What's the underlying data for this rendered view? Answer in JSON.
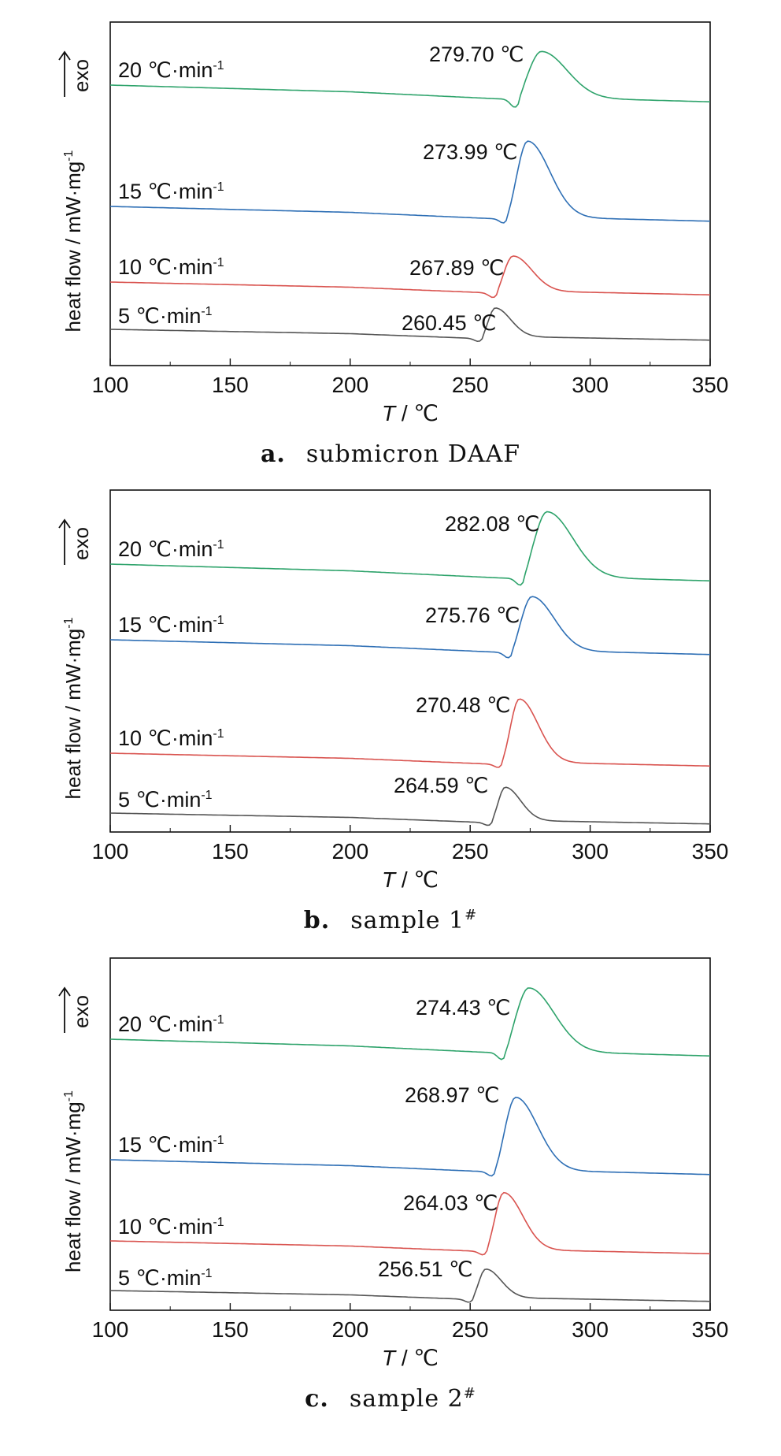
{
  "colors": {
    "s5": "#555555",
    "s10": "#d9534f",
    "s15": "#2e6fb5",
    "s20": "#2ea36b"
  },
  "chart_data": [
    {
      "type": "line",
      "caption_letter": "a.",
      "caption_text": "submicron DAAF",
      "xlabel_T": "T",
      "xlabel_unit": " / ℃",
      "ylabel": "heat flow / mW·mg",
      "ylabel_sup": "-1",
      "exo_label": "exo",
      "xlim": [
        100,
        350
      ],
      "xticks": [
        "100",
        "150",
        "200",
        "250",
        "300",
        "350"
      ],
      "series": [
        {
          "name": "5 ℃·min",
          "sup": "-1",
          "peak": 260.45,
          "peak_label": "260.45 ℃",
          "color": "#555555"
        },
        {
          "name": "10 ℃·min",
          "sup": "-1",
          "peak": 267.89,
          "peak_label": "267.89 ℃",
          "color": "#d9534f"
        },
        {
          "name": "15 ℃·min",
          "sup": "-1",
          "peak": 273.99,
          "peak_label": "273.99 ℃",
          "color": "#2e6fb5"
        },
        {
          "name": "20 ℃·min",
          "sup": "-1",
          "peak": 279.7,
          "peak_label": "279.70 ℃",
          "color": "#2ea36b"
        }
      ]
    },
    {
      "type": "line",
      "caption_letter": "b.",
      "caption_text": "sample 1",
      "caption_sup": "#",
      "xlabel_T": "T",
      "xlabel_unit": " / ℃",
      "ylabel": "heat flow / mW·mg",
      "ylabel_sup": "-1",
      "exo_label": "exo",
      "xlim": [
        100,
        350
      ],
      "xticks": [
        "100",
        "150",
        "200",
        "250",
        "300",
        "350"
      ],
      "series": [
        {
          "name": "5 ℃·min",
          "sup": "-1",
          "peak": 264.59,
          "peak_label": "264.59 ℃",
          "color": "#555555"
        },
        {
          "name": "10 ℃·min",
          "sup": "-1",
          "peak": 270.48,
          "peak_label": "270.48 ℃",
          "color": "#d9534f"
        },
        {
          "name": "15 ℃·min",
          "sup": "-1",
          "peak": 275.76,
          "peak_label": "275.76 ℃",
          "color": "#2e6fb5"
        },
        {
          "name": "20 ℃·min",
          "sup": "-1",
          "peak": 282.08,
          "peak_label": "282.08 ℃",
          "color": "#2ea36b"
        }
      ]
    },
    {
      "type": "line",
      "caption_letter": "c.",
      "caption_text": "sample 2",
      "caption_sup": "#",
      "xlabel_T": "T",
      "xlabel_unit": " / ℃",
      "ylabel": "heat flow / mW·mg",
      "ylabel_sup": "-1",
      "exo_label": "exo",
      "xlim": [
        100,
        350
      ],
      "xticks": [
        "100",
        "150",
        "200",
        "250",
        "300",
        "350"
      ],
      "series": [
        {
          "name": "5 ℃·min",
          "sup": "-1",
          "peak": 256.51,
          "peak_label": "256.51 ℃",
          "color": "#555555"
        },
        {
          "name": "10 ℃·min",
          "sup": "-1",
          "peak": 264.03,
          "peak_label": "264.03 ℃",
          "color": "#d9534f"
        },
        {
          "name": "15 ℃·min",
          "sup": "-1",
          "peak": 268.97,
          "peak_label": "268.97 ℃",
          "color": "#2e6fb5"
        },
        {
          "name": "20 ℃·min",
          "sup": "-1",
          "peak": 274.43,
          "peak_label": "274.43 ℃",
          "color": "#2ea36b"
        }
      ]
    }
  ]
}
